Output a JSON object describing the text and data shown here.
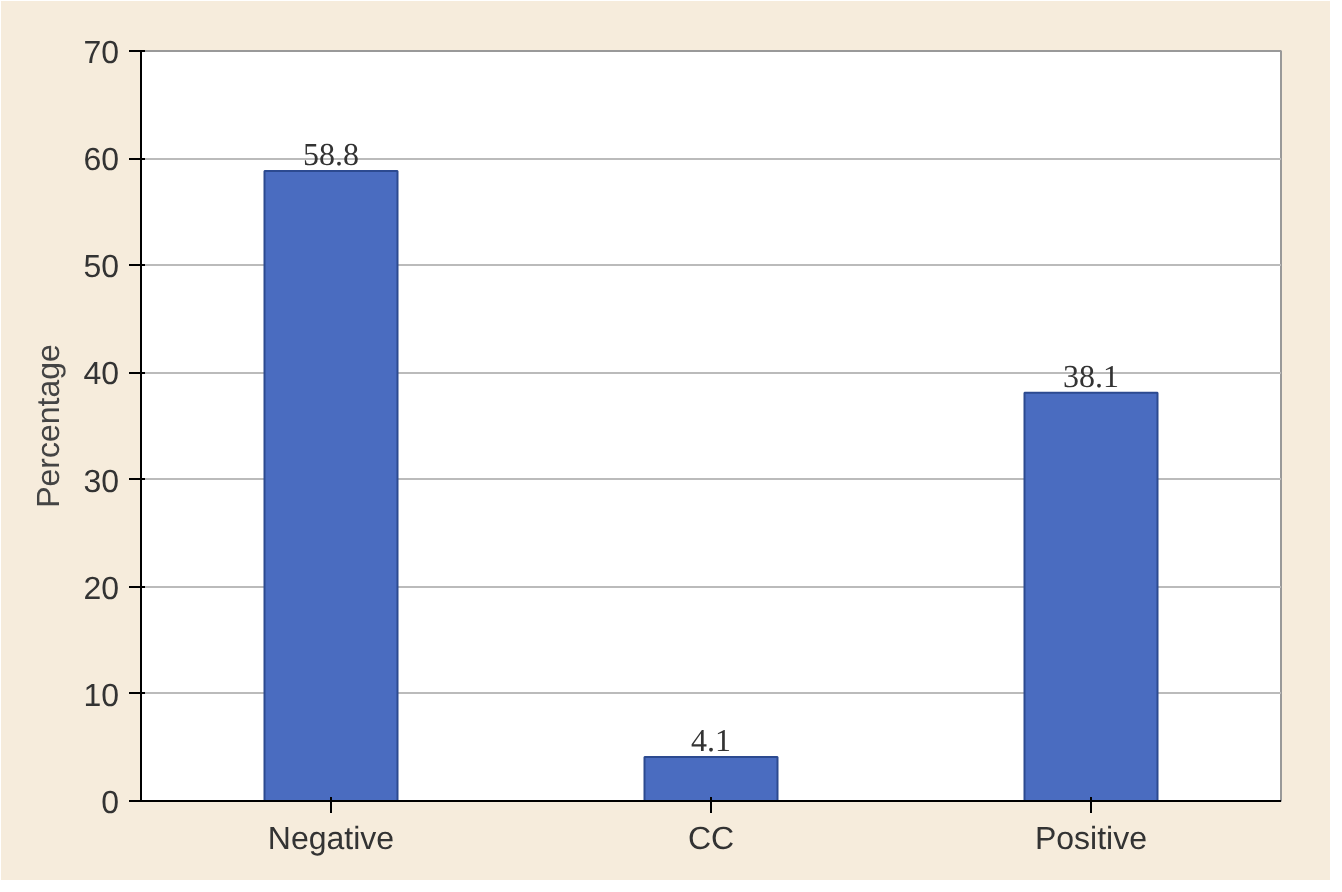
{
  "chart_data": {
    "type": "bar",
    "ylabel": "Percentage",
    "categories": [
      "Negative",
      "CC",
      "Positive"
    ],
    "values": [
      58.8,
      4.1,
      38.1
    ],
    "color": "#4a6cc0",
    "ylim": [
      0,
      70
    ],
    "yticks": [
      0,
      10,
      20,
      30,
      40,
      50,
      60,
      70
    ],
    "grid": "y",
    "data_labels": true
  }
}
